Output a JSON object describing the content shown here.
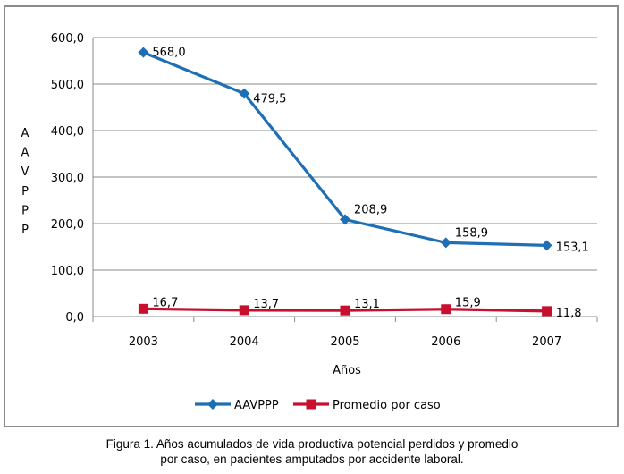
{
  "chart_data": {
    "type": "line",
    "categories": [
      "2003",
      "2004",
      "2005",
      "2006",
      "2007"
    ],
    "series": [
      {
        "name": "AAVPPP",
        "values": [
          568.0,
          479.5,
          208.9,
          158.9,
          153.1
        ],
        "labels": [
          "568,0",
          "479,5",
          "208,9",
          "158,9",
          "153,1"
        ],
        "color": "#1f6fb5",
        "marker": "diamond"
      },
      {
        "name": "Promedio por caso",
        "values": [
          16.7,
          13.7,
          13.1,
          15.9,
          11.8
        ],
        "labels": [
          "16,7",
          "13,7",
          "13,1",
          "15,9",
          "11,8"
        ],
        "color": "#c8102e",
        "marker": "square"
      }
    ],
    "xlabel": "Años",
    "ylabel": [
      "A",
      "A",
      "V",
      "P",
      "P",
      "P"
    ],
    "ylim": [
      0,
      600
    ],
    "yticks": [
      0,
      100,
      200,
      300,
      400,
      500,
      600
    ],
    "ytick_labels": [
      "0,0",
      "100,0",
      "200,0",
      "300,0",
      "400,0",
      "500,0",
      "600,0"
    ],
    "grid": true,
    "legend_position": "bottom"
  },
  "caption": {
    "line1": "Figura 1. Años acumulados de vida productiva potencial perdidos y promedio",
    "line2": "por caso, en pacientes amputados por accidente laboral."
  }
}
